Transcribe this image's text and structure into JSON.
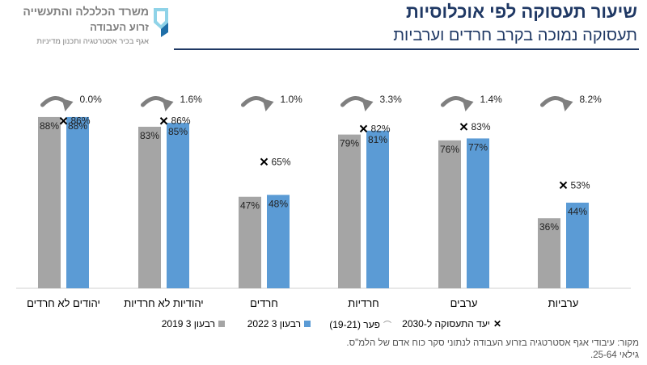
{
  "header": {
    "title": "שיעור תעסוקה לפי אוכלוסיות",
    "subtitle": "תעסוקה נמוכה בקרב חרדים וערביות"
  },
  "logo": {
    "line1": "משרד הכלכלה והתעשייה",
    "line2": "זרוע העבודה",
    "line3": "אגף בכיר אסטרטגיה ותכנון מדיניות"
  },
  "source": {
    "line1": "מקור: עיבודי אגף אסטרטגיה בזרוע העבודה לנתוני סקר כוח אדם של הלמ\"ס.",
    "line2": "גילאי 25-64."
  },
  "colors": {
    "series_2019": "#a5a5a5",
    "series_2022": "#5b9bd5",
    "arrow": "#7f7f7f"
  },
  "chart_data": {
    "type": "bar",
    "categories": [
      "יהודים לא חרדים",
      "יהודיות לא חרדיות",
      "חרדים",
      "חרדיות",
      "ערבים",
      "ערביות"
    ],
    "series": [
      {
        "name": "רבעון 3 2019",
        "values": [
          88,
          83,
          47,
          79,
          76,
          36
        ],
        "labels": [
          "88%",
          "83%",
          "47%",
          "79%",
          "76%",
          "36%"
        ]
      },
      {
        "name": "רבעון 3 2022",
        "values": [
          88,
          85,
          48,
          81,
          77,
          44
        ],
        "labels": [
          "88%",
          "85%",
          "48%",
          "81%",
          "77%",
          "44%"
        ]
      }
    ],
    "target_2030": {
      "name": "יעד התעסוקה ל-2030",
      "values": [
        86,
        86,
        65,
        82,
        83,
        53
      ],
      "labels": [
        "86%",
        "86%",
        "65%",
        "82%",
        "83%",
        "53%"
      ]
    },
    "gap_19_21": {
      "name": "פער (19-21)",
      "labels": [
        "0.0%",
        "1.6%",
        "1.0%",
        "3.3%",
        "1.4%",
        "8.2%"
      ]
    },
    "ylim": [
      0,
      100
    ],
    "legend_position": "bottom"
  }
}
